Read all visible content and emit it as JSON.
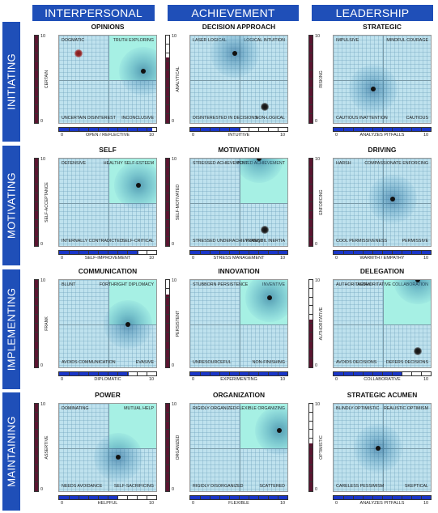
{
  "columns": [
    "INTERPERSONAL",
    "ACHIEVEMENT",
    "LEADERSHIP"
  ],
  "rows": [
    "INITIATING",
    "MOTIVATING",
    "IMPLEMENTING",
    "MAINTAINING"
  ],
  "colors": {
    "header": "#1f4fb8",
    "y_fill": "#5a1530",
    "x_fill": "#1a36c8",
    "plot_bg": "#bfe2ee",
    "highlight": "#a6f0e4"
  },
  "chart_data": [
    {
      "type": "scatter",
      "title": "OPINIONS",
      "xlabel": "OPEN / REFLECTIVE",
      "ylabel": "CERTAIN",
      "xlim": [
        0,
        10
      ],
      "ylim": [
        0,
        10
      ],
      "x_tick_labels": [
        "0",
        "10"
      ],
      "y_tick_labels": [
        "10",
        "0"
      ],
      "x_score": 9.6,
      "y_score": 10,
      "highlight_quadrant": "tr",
      "quadrants": {
        "tl": "DOGMATIC",
        "tr": "TRUTH EXPLORING",
        "bl": "UNCERTAIN DISINTEREST",
        "br": "INCONCLUSIVE"
      },
      "points": [
        {
          "x": 8.5,
          "y": 6.0
        }
      ],
      "points_secondary": [
        {
          "x": 2.0,
          "y": 8.0,
          "color": "#8b2020"
        }
      ]
    },
    {
      "type": "scatter",
      "title": "DECISION APPROACH",
      "xlabel": "INTUITIVE",
      "ylabel": "ANALYTICAL",
      "xlim": [
        0,
        10
      ],
      "ylim": [
        0,
        10
      ],
      "x_tick_labels": [
        "0",
        "10"
      ],
      "y_tick_labels": [
        "10",
        "0"
      ],
      "x_score": 5.2,
      "y_score": 7.5,
      "highlight_quadrant": "",
      "quadrants": {
        "tl": "LASER LOGICAL",
        "tr": "LOGICAL INTUITION",
        "bl": "DISINTERESTED IN DECISIONS",
        "br": "NON-LOGICAL"
      },
      "points": [
        {
          "x": 4.5,
          "y": 8.0
        }
      ],
      "points_secondary": [
        {
          "x": 7.5,
          "y": 2.0,
          "color": "#111111"
        }
      ]
    },
    {
      "type": "scatter",
      "title": "STRATEGIC",
      "xlabel": "ANALYZES PITFALLS",
      "ylabel": "RISKING",
      "xlim": [
        0,
        10
      ],
      "ylim": [
        0,
        10
      ],
      "x_tick_labels": [
        "0",
        "10"
      ],
      "y_tick_labels": [
        "10",
        "0"
      ],
      "x_score": 10,
      "y_score": 10,
      "highlight_quadrant": "",
      "quadrants": {
        "tl": "IMPULSIVE",
        "tr": "MINDFUL COURAGE",
        "bl": "CAUTIOUS INATTENTION",
        "br": "CAUTIOUS"
      },
      "points": [
        {
          "x": 4.0,
          "y": 4.0
        }
      ],
      "points_secondary": []
    },
    {
      "type": "scatter",
      "title": "SELF",
      "xlabel": "SELF-IMPROVEMENT",
      "ylabel": "SELF-ACCEPTANCE",
      "xlim": [
        0,
        10
      ],
      "ylim": [
        0,
        10
      ],
      "x_tick_labels": [
        "0",
        "10"
      ],
      "y_tick_labels": [
        "10",
        "0"
      ],
      "x_score": 8.2,
      "y_score": 10,
      "highlight_quadrant": "tr",
      "quadrants": {
        "tl": "DEFENSIVE",
        "tr": "HEALTHY SELF-ESTEEM",
        "bl": "INTERNALLY CONTRADICTED",
        "br": "SELF-CRITICAL"
      },
      "points": [
        {
          "x": 8.0,
          "y": 7.0
        }
      ],
      "points_secondary": []
    },
    {
      "type": "scatter",
      "title": "MOTIVATION",
      "xlabel": "STRESS MANAGEMENT",
      "ylabel": "SELF-MOTIVATED",
      "xlim": [
        0,
        10
      ],
      "ylim": [
        0,
        10
      ],
      "x_tick_labels": [
        "0",
        "10"
      ],
      "y_tick_labels": [
        "10",
        "0"
      ],
      "x_score": 10,
      "y_score": 10,
      "highlight_quadrant": "tr",
      "quadrants": {
        "tl": "STRESSED ACHIEVEMENT",
        "tr": "POISED ACHIEVEMENT",
        "bl": "STRESSED UNDERACHIEVEMENT",
        "br": "TRANQUIL INERTIA"
      },
      "points": [
        {
          "x": 7.0,
          "y": 10.0
        }
      ],
      "points_secondary": [
        {
          "x": 7.5,
          "y": 2.0,
          "color": "#111111"
        }
      ]
    },
    {
      "type": "scatter",
      "title": "DRIVING",
      "xlabel": "WARMTH / EMPATHY",
      "ylabel": "ENFORCING",
      "xlim": [
        0,
        10
      ],
      "ylim": [
        0,
        10
      ],
      "x_tick_labels": [
        "0",
        "10"
      ],
      "y_tick_labels": [
        "10",
        "0"
      ],
      "x_score": 10,
      "y_score": 10,
      "highlight_quadrant": "",
      "quadrants": {
        "tl": "HARSH",
        "tr": "COMPASSIONATE ENFORCING",
        "bl": "COOL PERMISSIVENESS",
        "br": "PERMISSIVE"
      },
      "points": [
        {
          "x": 6.0,
          "y": 5.5
        }
      ],
      "points_secondary": []
    },
    {
      "type": "scatter",
      "title": "COMMUNICATION",
      "xlabel": "DIPLOMATIC",
      "ylabel": "FRANK",
      "xlim": [
        0,
        10
      ],
      "ylim": [
        0,
        10
      ],
      "x_tick_labels": [
        "0",
        "10"
      ],
      "y_tick_labels": [
        "10",
        "0"
      ],
      "x_score": 7.2,
      "y_score": 10,
      "highlight_quadrant": "tr",
      "quadrants": {
        "tl": "BLUNT",
        "tr": "FORTHRIGHT DIPLOMACY",
        "bl": "AVOIDS COMMUNICATION",
        "br": "EVASIVE"
      },
      "points": [
        {
          "x": 7.0,
          "y": 5.0
        }
      ],
      "points_secondary": []
    },
    {
      "type": "scatter",
      "title": "INNOVATION",
      "xlabel": "EXPERIMENTING",
      "ylabel": "PERSISTENT",
      "xlim": [
        0,
        10
      ],
      "ylim": [
        0,
        10
      ],
      "x_tick_labels": [
        "0",
        "10"
      ],
      "y_tick_labels": [
        "10",
        "0"
      ],
      "x_score": 10,
      "y_score": 8.3,
      "highlight_quadrant": "tr",
      "quadrants": {
        "tl": "STUBBORN PERSISTENCE",
        "tr": "INVENTIVE",
        "bl": "UNRESOURCEFUL",
        "br": "NON-FINISHING"
      },
      "points": [
        {
          "x": 8.0,
          "y": 8.0
        }
      ],
      "points_secondary": []
    },
    {
      "type": "scatter",
      "title": "DELEGATION",
      "xlabel": "COLLABORATIVE",
      "ylabel": "AUTHORITATIVE",
      "xlim": [
        0,
        10
      ],
      "ylim": [
        0,
        10
      ],
      "x_tick_labels": [
        "0",
        "10"
      ],
      "y_tick_labels": [
        "10",
        "0"
      ],
      "x_score": 7.0,
      "y_score": 5.5,
      "highlight_quadrant": "tr",
      "quadrants": {
        "tl": "AUTHORITARIAN",
        "tr": "AUTHORITATIVE COLLABORATION",
        "bl": "AVOIDS DECISIONS",
        "br": "DEFERS DECISIONS"
      },
      "points": [
        {
          "x": 8.5,
          "y": 10.0
        }
      ],
      "points_secondary": [
        {
          "x": 8.5,
          "y": 2.0,
          "color": "#111111"
        }
      ]
    },
    {
      "type": "scatter",
      "title": "POWER",
      "xlabel": "HELPFUL",
      "ylabel": "ASSERTIVE",
      "xlim": [
        0,
        10
      ],
      "ylim": [
        0,
        10
      ],
      "x_tick_labels": [
        "0",
        "10"
      ],
      "y_tick_labels": [
        "10",
        "0"
      ],
      "x_score": 6.0,
      "y_score": 10,
      "highlight_quadrant": "tr",
      "quadrants": {
        "tl": "DOMINATING",
        "tr": "MUTUAL HELP",
        "bl": "NEEDS AVOIDANCE",
        "br": "SELF-SACRIFICING"
      },
      "points": [
        {
          "x": 6.0,
          "y": 4.0
        }
      ],
      "points_secondary": []
    },
    {
      "type": "scatter",
      "title": "ORGANIZATION",
      "xlabel": "FLEXIBLE",
      "ylabel": "ORGANIZED",
      "xlim": [
        0,
        10
      ],
      "ylim": [
        0,
        10
      ],
      "x_tick_labels": [
        "0",
        "10"
      ],
      "y_tick_labels": [
        "10",
        "0"
      ],
      "x_score": 10,
      "y_score": 10,
      "highlight_quadrant": "tr",
      "quadrants": {
        "tl": "RIGIDLY ORGANIZED",
        "tr": "FLEXIBLE ORGANIZING",
        "bl": "RIGIDLY DISORGANIZED",
        "br": "SCATTERED"
      },
      "points": [
        {
          "x": 9.0,
          "y": 7.0
        }
      ],
      "points_secondary": []
    },
    {
      "type": "scatter",
      "title": "STRATEGIC  ACUMEN",
      "xlabel": "ANALYZES PITFALLS",
      "ylabel": "OPTIMISTIC",
      "xlim": [
        0,
        10
      ],
      "ylim": [
        0,
        10
      ],
      "x_tick_labels": [
        "0",
        "10"
      ],
      "y_tick_labels": [
        "10",
        "0"
      ],
      "x_score": 10,
      "y_score": 5.5,
      "highlight_quadrant": "",
      "quadrants": {
        "tl": "BLINDLY OPTIMISTIC",
        "tr": "REALISTIC OPTIMISM",
        "bl": "CARELESS PESSIMISM",
        "br": "SKEPTICAL"
      },
      "points": [
        {
          "x": 4.5,
          "y": 5.0
        }
      ],
      "points_secondary": []
    }
  ]
}
